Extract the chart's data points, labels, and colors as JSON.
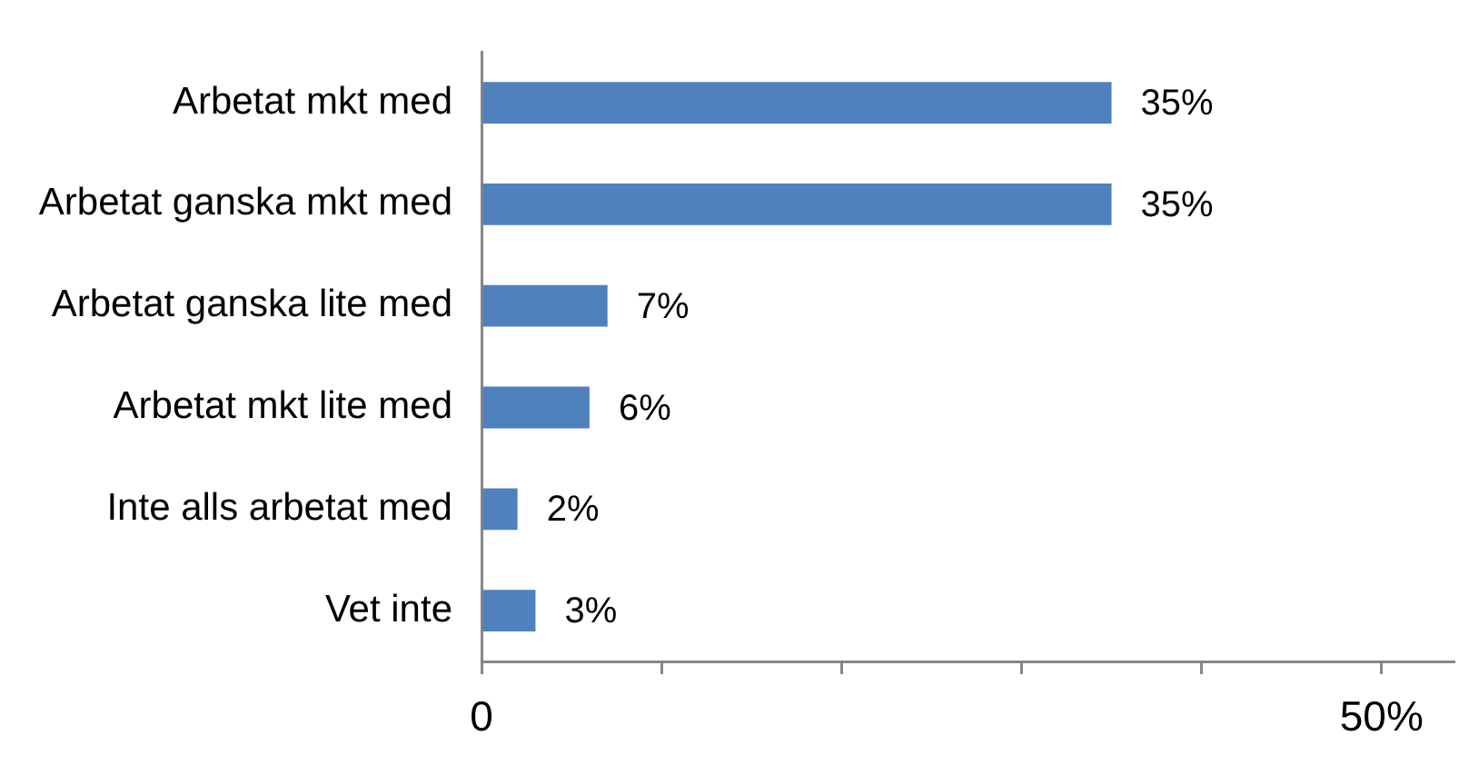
{
  "chart_data": {
    "type": "bar",
    "orientation": "horizontal",
    "categories": [
      "Arbetat mkt med",
      "Arbetat ganska mkt med",
      "Arbetat ganska lite med",
      "Arbetat mkt lite med",
      "Inte alls arbetat med",
      "Vet inte"
    ],
    "values": [
      35,
      35,
      7,
      6,
      2,
      3
    ],
    "value_labels": [
      "35%",
      "35%",
      "7%",
      "6%",
      "2%",
      "3%"
    ],
    "color": "#4f81bd",
    "xlim": [
      0,
      54
    ],
    "xticks": [
      {
        "value": 0,
        "label": "0"
      },
      {
        "value": 10,
        "label": null
      },
      {
        "value": 20,
        "label": null
      },
      {
        "value": 30,
        "label": null
      },
      {
        "value": 40,
        "label": null
      },
      {
        "value": 50,
        "label": "50%"
      }
    ]
  }
}
